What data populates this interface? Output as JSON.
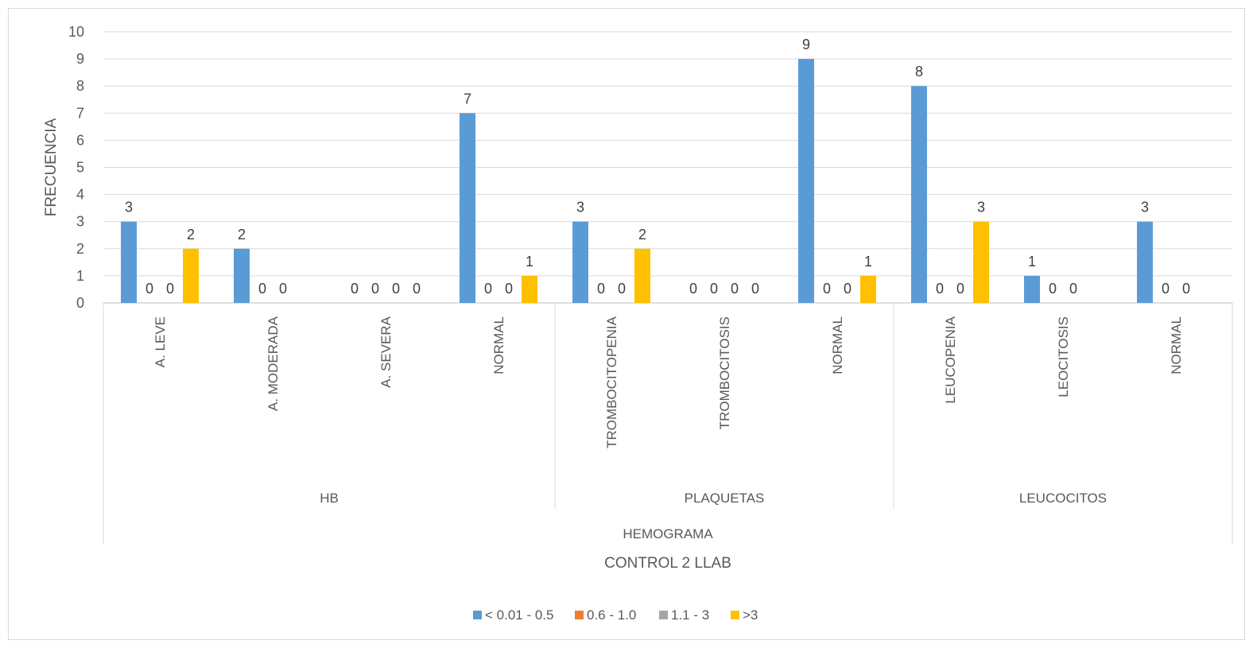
{
  "chart_data": {
    "type": "bar",
    "title": "",
    "ylabel": "FRECUENCIA",
    "xlabel": "CONTROL 2 LLAB",
    "ylim": [
      0,
      10
    ],
    "yticks": [
      0,
      1,
      2,
      3,
      4,
      5,
      6,
      7,
      8,
      9,
      10
    ],
    "grid": true,
    "legend_position": "bottom",
    "top_group": "HEMOGRAMA",
    "groups": [
      {
        "name": "HB",
        "categories": [
          "A. LEVE",
          "A. MODERADA",
          "A. SEVERA",
          "NORMAL"
        ]
      },
      {
        "name": "PLAQUETAS",
        "categories": [
          "TROMBOCITOPENIA",
          "TROMBOCITOSIS",
          "NORMAL"
        ]
      },
      {
        "name": "LEUCOCITOS",
        "categories": [
          "LEUCOPENIA",
          "LEOCITOSIS",
          "NORMAL"
        ]
      }
    ],
    "categories": [
      "A. LEVE",
      "A. MODERADA",
      "A. SEVERA",
      "NORMAL",
      "TROMBOCITOPENIA",
      "TROMBOCITOSIS",
      "NORMAL",
      "LEUCOPENIA",
      "LEOCITOSIS",
      "NORMAL"
    ],
    "series": [
      {
        "name": "< 0.01 - 0.5",
        "color": "#5b9bd5",
        "values": [
          3,
          2,
          0,
          7,
          3,
          0,
          9,
          8,
          1,
          3
        ]
      },
      {
        "name": "0.6 - 1.0",
        "color": "#ed7d31",
        "values": [
          0,
          0,
          0,
          0,
          0,
          0,
          0,
          0,
          0,
          0
        ]
      },
      {
        "name": "1.1 - 3",
        "color": "#a5a5a5",
        "values": [
          0,
          0,
          0,
          0,
          0,
          0,
          0,
          0,
          0,
          0
        ]
      },
      {
        "name": ">3",
        "color": "#ffc000",
        "values": [
          2,
          null,
          0,
          1,
          2,
          0,
          1,
          3,
          null,
          null
        ]
      }
    ]
  }
}
